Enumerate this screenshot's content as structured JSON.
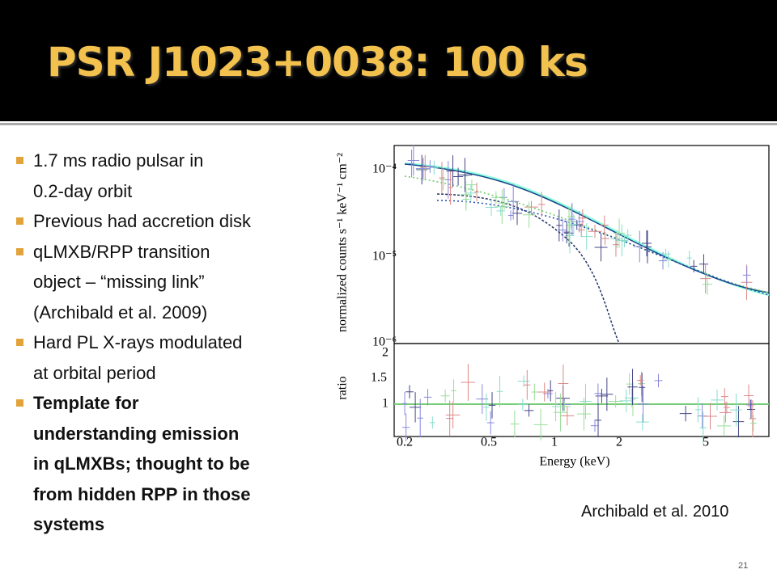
{
  "header": {
    "title": "PSR J1023+0038: 100 ks"
  },
  "bullets": [
    {
      "lines": [
        "1.7 ms radio pulsar in",
        "0.2-day orbit"
      ],
      "bold": false
    },
    {
      "lines": [
        "Previous had accretion disk"
      ],
      "bold": false
    },
    {
      "lines": [
        "qLMXB/RPP transition",
        "object – “missing link”",
        "(Archibald et al. 2009)"
      ],
      "bold": false
    },
    {
      "lines": [
        "Hard PL X-rays modulated",
        "at orbital period"
      ],
      "bold": false
    },
    {
      "lines": [
        "Template for",
        "understanding emission",
        "in qLMXBs; thought to be",
        "from hidden RPP in those",
        "systems"
      ],
      "bold": true
    }
  ],
  "figure": {
    "y_label": "normalized counts s⁻¹ keV⁻¹ cm⁻²",
    "y_ticks": [
      "10⁻⁴",
      "10⁻⁵",
      "10⁻⁶"
    ],
    "ratio_label": "ratio",
    "ratio_ticks": [
      "2",
      "1.5",
      "1"
    ],
    "x_ticks": [
      "0.2",
      "0.5",
      "1",
      "2",
      "5"
    ],
    "x_label": "Energy (keV)",
    "caption": "Archibald et al. 2010"
  },
  "footer": {
    "page_number": "21"
  }
}
